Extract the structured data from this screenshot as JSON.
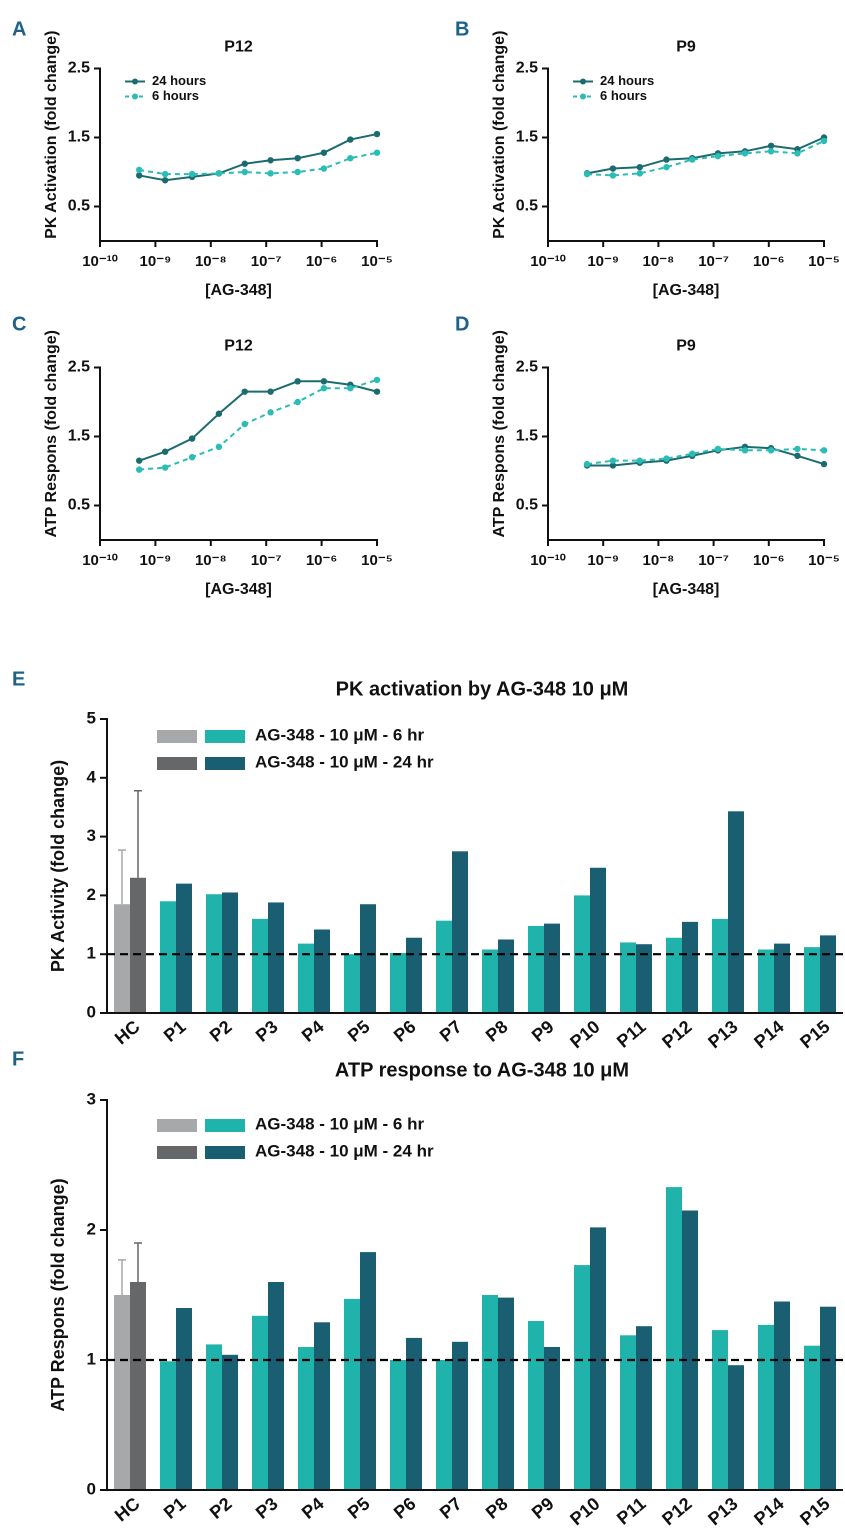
{
  "chart_data": [
    {
      "type": "line",
      "panel": "A",
      "title": "P12",
      "xlabel": "[AG-348]",
      "ylabel": "PK Activation (fold change)",
      "xscale": "log",
      "legend": true,
      "xlim": [
        1e-10,
        1e-05
      ],
      "xticks": [
        {
          "value": 1e-10,
          "label": "10⁻¹⁰"
        },
        {
          "value": 1e-09,
          "label": "10⁻⁹"
        },
        {
          "value": 1e-08,
          "label": "10⁻⁸"
        },
        {
          "value": 1e-07,
          "label": "10⁻⁷"
        },
        {
          "value": 1e-06,
          "label": "10⁻⁶"
        },
        {
          "value": 1e-05,
          "label": "10⁻⁵"
        }
      ],
      "ylim": [
        0,
        2.5
      ],
      "yticks": [
        0.5,
        1.5,
        2.5
      ],
      "x": [
        5.1e-10,
        1.5e-09,
        4.6e-09,
        1.4e-08,
        4.1e-08,
        1.2e-07,
        3.7e-07,
        1.1e-06,
        3.3e-06,
        1e-05
      ],
      "series": [
        {
          "name": "24 hours",
          "color": "#1b6b6f",
          "line_style": "solid",
          "values": [
            0.95,
            0.88,
            0.93,
            0.98,
            1.12,
            1.17,
            1.2,
            1.28,
            1.47,
            1.55
          ]
        },
        {
          "name": "6 hours",
          "color": "#2bbcb6",
          "line_style": "dashed",
          "values": [
            1.03,
            0.97,
            0.97,
            0.98,
            1.0,
            0.98,
            1.0,
            1.05,
            1.2,
            1.28
          ]
        }
      ]
    },
    {
      "type": "line",
      "panel": "B",
      "title": "P9",
      "xlabel": "[AG-348]",
      "ylabel": "PK Activation (fold change)",
      "xscale": "log",
      "legend": true,
      "xlim": [
        1e-10,
        1e-05
      ],
      "xticks": [
        {
          "value": 1e-10,
          "label": "10⁻¹⁰"
        },
        {
          "value": 1e-09,
          "label": "10⁻⁹"
        },
        {
          "value": 1e-08,
          "label": "10⁻⁸"
        },
        {
          "value": 1e-07,
          "label": "10⁻⁷"
        },
        {
          "value": 1e-06,
          "label": "10⁻⁶"
        },
        {
          "value": 1e-05,
          "label": "10⁻⁵"
        }
      ],
      "ylim": [
        0,
        2.5
      ],
      "yticks": [
        0.5,
        1.5,
        2.5
      ],
      "x": [
        5.1e-10,
        1.5e-09,
        4.6e-09,
        1.4e-08,
        4.1e-08,
        1.2e-07,
        3.7e-07,
        1.1e-06,
        3.3e-06,
        1e-05
      ],
      "series": [
        {
          "name": "24 hours",
          "color": "#1b6b6f",
          "line_style": "solid",
          "values": [
            0.98,
            1.05,
            1.07,
            1.18,
            1.2,
            1.27,
            1.3,
            1.38,
            1.33,
            1.5
          ]
        },
        {
          "name": "6 hours",
          "color": "#2bbcb6",
          "line_style": "dashed",
          "values": [
            0.97,
            0.95,
            0.98,
            1.07,
            1.18,
            1.23,
            1.27,
            1.3,
            1.27,
            1.45
          ]
        }
      ]
    },
    {
      "type": "line",
      "panel": "C",
      "title": "P12",
      "xlabel": "[AG-348]",
      "ylabel": "ATP Respons (fold change)",
      "xscale": "log",
      "legend": false,
      "xlim": [
        1e-10,
        1e-05
      ],
      "xticks": [
        {
          "value": 1e-10,
          "label": "10⁻¹⁰"
        },
        {
          "value": 1e-09,
          "label": "10⁻⁹"
        },
        {
          "value": 1e-08,
          "label": "10⁻⁸"
        },
        {
          "value": 1e-07,
          "label": "10⁻⁷"
        },
        {
          "value": 1e-06,
          "label": "10⁻⁶"
        },
        {
          "value": 1e-05,
          "label": "10⁻⁵"
        }
      ],
      "ylim": [
        0,
        2.5
      ],
      "yticks": [
        0.5,
        1.5,
        2.5
      ],
      "x": [
        5.1e-10,
        1.5e-09,
        4.6e-09,
        1.4e-08,
        4.1e-08,
        1.2e-07,
        3.7e-07,
        1.1e-06,
        3.3e-06,
        1e-05
      ],
      "series": [
        {
          "color": "#1b6b6f",
          "line_style": "solid",
          "values": [
            1.15,
            1.28,
            1.47,
            1.83,
            2.15,
            2.15,
            2.3,
            2.3,
            2.25,
            2.15
          ]
        },
        {
          "color": "#2bbcb6",
          "line_style": "dashed",
          "values": [
            1.02,
            1.05,
            1.2,
            1.35,
            1.68,
            1.85,
            2.0,
            2.2,
            2.2,
            2.32
          ]
        }
      ]
    },
    {
      "type": "line",
      "panel": "D",
      "title": "P9",
      "xlabel": "[AG-348]",
      "ylabel": "ATP Respons (fold change)",
      "xscale": "log",
      "legend": false,
      "xlim": [
        1e-10,
        1e-05
      ],
      "xticks": [
        {
          "value": 1e-10,
          "label": "10⁻¹⁰"
        },
        {
          "value": 1e-09,
          "label": "10⁻⁹"
        },
        {
          "value": 1e-08,
          "label": "10⁻⁸"
        },
        {
          "value": 1e-07,
          "label": "10⁻⁷"
        },
        {
          "value": 1e-06,
          "label": "10⁻⁶"
        },
        {
          "value": 1e-05,
          "label": "10⁻⁵"
        }
      ],
      "ylim": [
        0,
        2.5
      ],
      "yticks": [
        0.5,
        1.5,
        2.5
      ],
      "x": [
        5.1e-10,
        1.5e-09,
        4.6e-09,
        1.4e-08,
        4.1e-08,
        1.2e-07,
        3.7e-07,
        1.1e-06,
        3.3e-06,
        1e-05
      ],
      "series": [
        {
          "color": "#1b6b6f",
          "line_style": "solid",
          "values": [
            1.08,
            1.08,
            1.12,
            1.15,
            1.22,
            1.3,
            1.35,
            1.33,
            1.22,
            1.1
          ]
        },
        {
          "color": "#2bbcb6",
          "line_style": "dashed",
          "values": [
            1.1,
            1.15,
            1.15,
            1.18,
            1.25,
            1.32,
            1.3,
            1.3,
            1.32,
            1.3
          ]
        }
      ]
    },
    {
      "type": "bar",
      "panel": "E",
      "title": "PK activation by AG-348 10 μM",
      "ylabel": "PK Activity (fold change)",
      "reference_line": 1,
      "categories": [
        "HC",
        "P1",
        "P2",
        "P3",
        "P4",
        "P5",
        "P6",
        "P7",
        "P8",
        "P9",
        "P10",
        "P11",
        "P12",
        "P13",
        "P14",
        "P15"
      ],
      "ylim": [
        0,
        5
      ],
      "yticks": [
        0,
        1,
        2,
        3,
        4,
        5
      ],
      "series": [
        {
          "name": "AG-348 - 10 μM - 6 hr",
          "color": "#20b3ab",
          "colors": [
            "#a7a8aa",
            "#20b3ab",
            "#20b3ab",
            "#20b3ab",
            "#20b3ab",
            "#20b3ab",
            "#20b3ab",
            "#20b3ab",
            "#20b3ab",
            "#20b3ab",
            "#20b3ab",
            "#20b3ab",
            "#20b3ab",
            "#20b3ab",
            "#20b3ab",
            "#20b3ab"
          ],
          "values": [
            1.85,
            1.9,
            2.02,
            1.6,
            1.18,
            1.0,
            1.02,
            1.57,
            1.08,
            1.48,
            2.0,
            1.2,
            1.28,
            1.6,
            1.08,
            1.12
          ],
          "errors": [
            0.92,
            null,
            null,
            null,
            null,
            null,
            null,
            null,
            null,
            null,
            null,
            null,
            null,
            null,
            null,
            null
          ]
        },
        {
          "name": "AG-348 - 10 μM - 24 hr",
          "color": "#1a5e72",
          "colors": [
            "#666769",
            "#1a5e72",
            "#1a5e72",
            "#1a5e72",
            "#1a5e72",
            "#1a5e72",
            "#1a5e72",
            "#1a5e72",
            "#1a5e72",
            "#1a5e72",
            "#1a5e72",
            "#1a5e72",
            "#1a5e72",
            "#1a5e72",
            "#1a5e72",
            "#1a5e72"
          ],
          "values": [
            2.3,
            2.2,
            2.05,
            1.88,
            1.42,
            1.85,
            1.28,
            2.75,
            1.25,
            1.52,
            2.47,
            1.17,
            1.55,
            3.43,
            1.18,
            1.32
          ],
          "errors": [
            1.48,
            null,
            null,
            null,
            null,
            null,
            null,
            null,
            null,
            null,
            null,
            null,
            null,
            null,
            null,
            null
          ]
        }
      ]
    },
    {
      "type": "bar",
      "panel": "F",
      "title": "ATP response to AG-348 10 μM",
      "ylabel": "ATP Respons (fold change)",
      "reference_line": 1,
      "categories": [
        "HC",
        "P1",
        "P2",
        "P3",
        "P4",
        "P5",
        "P6",
        "P7",
        "P8",
        "P9",
        "P10",
        "P11",
        "P12",
        "P13",
        "P14",
        "P15"
      ],
      "ylim": [
        0,
        3
      ],
      "yticks": [
        0,
        1,
        2,
        3
      ],
      "series": [
        {
          "name": "AG-348 - 10 μM - 6 hr",
          "color": "#20b3ab",
          "colors": [
            "#a7a8aa",
            "#20b3ab",
            "#20b3ab",
            "#20b3ab",
            "#20b3ab",
            "#20b3ab",
            "#20b3ab",
            "#20b3ab",
            "#20b3ab",
            "#20b3ab",
            "#20b3ab",
            "#20b3ab",
            "#20b3ab",
            "#20b3ab",
            "#20b3ab",
            "#20b3ab"
          ],
          "values": [
            1.5,
            0.99,
            1.12,
            1.34,
            1.1,
            1.47,
            1.0,
            1.0,
            1.5,
            1.3,
            1.73,
            1.19,
            2.33,
            1.23,
            1.27,
            1.11
          ],
          "errors": [
            0.27,
            null,
            null,
            null,
            null,
            null,
            null,
            null,
            null,
            null,
            null,
            null,
            null,
            null,
            null,
            null
          ]
        },
        {
          "name": "AG-348 - 10 μM - 24 hr",
          "color": "#1a5e72",
          "colors": [
            "#666769",
            "#1a5e72",
            "#1a5e72",
            "#1a5e72",
            "#1a5e72",
            "#1a5e72",
            "#1a5e72",
            "#1a5e72",
            "#1a5e72",
            "#1a5e72",
            "#1a5e72",
            "#1a5e72",
            "#1a5e72",
            "#1a5e72",
            "#1a5e72",
            "#1a5e72"
          ],
          "values": [
            1.6,
            1.4,
            1.04,
            1.6,
            1.29,
            1.83,
            1.17,
            1.14,
            1.48,
            1.1,
            2.02,
            1.26,
            2.15,
            0.96,
            1.45,
            1.41
          ],
          "errors": [
            0.3,
            null,
            null,
            null,
            null,
            null,
            null,
            null,
            null,
            null,
            null,
            null,
            null,
            null,
            null,
            null
          ]
        }
      ]
    }
  ]
}
